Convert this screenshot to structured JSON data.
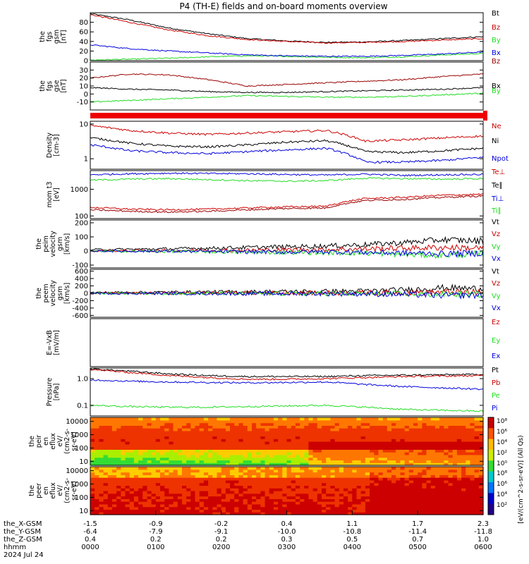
{
  "title": "P4 (TH-E) fields and on-board moments overview",
  "colors": {
    "black": "#000000",
    "red": "#cc0000",
    "green": "#22dd22",
    "blue": "#0000dd",
    "darkred": "#990000"
  },
  "chart_data": [
    {
      "id": "fgs1",
      "type": "line",
      "ylabel": [
        "the",
        "fgs",
        "gsm",
        "[nT]"
      ],
      "ylim": [
        0,
        100
      ],
      "ticks": [
        "0",
        "20",
        "40",
        "60",
        "80"
      ],
      "tickvals": [
        0,
        20,
        40,
        60,
        80
      ],
      "legend": [
        "Bt",
        "Bz",
        "By",
        "Bx"
      ],
      "legend_colors": [
        "black",
        "red",
        "green",
        "blue"
      ],
      "series": [
        {
          "name": "Bt",
          "color": "black",
          "x": [
            0,
            0.1,
            0.2,
            0.3,
            0.4,
            0.5,
            0.6,
            0.7,
            0.8,
            0.9,
            1
          ],
          "y": [
            98,
            85,
            68,
            56,
            46,
            41,
            38,
            39,
            42,
            46,
            50
          ]
        },
        {
          "name": "Bz",
          "color": "red",
          "x": [
            0,
            0.1,
            0.2,
            0.3,
            0.4,
            0.5,
            0.6,
            0.7,
            0.8,
            0.9,
            1
          ],
          "y": [
            96,
            80,
            64,
            52,
            44,
            40,
            37,
            38,
            40,
            43,
            46
          ]
        },
        {
          "name": "By",
          "color": "green",
          "x": [
            0,
            0.1,
            0.2,
            0.3,
            0.4,
            0.5,
            0.6,
            0.7,
            0.8,
            0.9,
            1
          ],
          "y": [
            1,
            3,
            5,
            8,
            10,
            9,
            7,
            6,
            8,
            12,
            15
          ]
        },
        {
          "name": "Bx",
          "color": "blue",
          "x": [
            0,
            0.1,
            0.2,
            0.3,
            0.4,
            0.5,
            0.6,
            0.7,
            0.8,
            0.9,
            1
          ],
          "y": [
            33,
            25,
            20,
            16,
            12,
            10,
            9,
            9,
            11,
            14,
            18
          ]
        }
      ]
    },
    {
      "id": "fgs2",
      "type": "line",
      "ylabel": [
        "the",
        "fgs",
        "gse",
        "[nT]"
      ],
      "ylim": [
        -20,
        40
      ],
      "ticks": [
        "-10",
        "0",
        "10",
        "20",
        "30"
      ],
      "tickvals": [
        -10,
        0,
        10,
        20,
        30
      ],
      "legend": [
        "Bz",
        "Bx",
        "By"
      ],
      "legend_colors": [
        "darkred",
        "black",
        "green"
      ],
      "series": [
        {
          "name": "Bz",
          "color": "darkred",
          "x": [
            0,
            0.1,
            0.2,
            0.3,
            0.4,
            0.5,
            0.6,
            0.7,
            0.8,
            0.9,
            1
          ],
          "y": [
            20,
            25,
            24,
            18,
            10,
            12,
            14,
            16,
            18,
            22,
            25
          ]
        },
        {
          "name": "Bx",
          "color": "black",
          "x": [
            0,
            0.1,
            0.2,
            0.3,
            0.4,
            0.5,
            0.6,
            0.7,
            0.8,
            0.9,
            1
          ],
          "y": [
            8,
            6,
            5,
            3,
            2,
            2,
            3,
            4,
            5,
            6,
            8
          ]
        },
        {
          "name": "By",
          "color": "green",
          "x": [
            0,
            0.1,
            0.2,
            0.3,
            0.4,
            0.5,
            0.6,
            0.7,
            0.8,
            0.9,
            1
          ],
          "y": [
            -10,
            -8,
            -6,
            -4,
            -2,
            -3,
            -4,
            -4,
            -3,
            -1,
            1
          ]
        }
      ]
    },
    {
      "id": "density",
      "type": "line",
      "ylabel": [
        "Density",
        "[cm-3]"
      ],
      "yscale": "log",
      "ylim": [
        0.5,
        12
      ],
      "ticks": [
        "1",
        "10"
      ],
      "tickvals": [
        1,
        10
      ],
      "legend": [
        "Ne",
        "Ni",
        "Npot"
      ],
      "legend_colors": [
        "red",
        "black",
        "blue"
      ],
      "series": [
        {
          "name": "Ne",
          "color": "red",
          "x": [
            0,
            0.1,
            0.2,
            0.3,
            0.4,
            0.5,
            0.6,
            0.7,
            0.8,
            0.9,
            1
          ],
          "y": [
            9,
            6.5,
            5.5,
            5,
            5.5,
            6,
            6.5,
            3.2,
            3.5,
            4,
            4.5
          ]
        },
        {
          "name": "Ni",
          "color": "black",
          "x": [
            0,
            0.1,
            0.2,
            0.3,
            0.4,
            0.5,
            0.6,
            0.7,
            0.8,
            0.9,
            1
          ],
          "y": [
            4,
            2.8,
            2.3,
            2.2,
            2.5,
            3,
            3.3,
            1.6,
            1.5,
            1.7,
            2
          ]
        },
        {
          "name": "Npot",
          "color": "blue",
          "x": [
            0,
            0.1,
            0.2,
            0.3,
            0.4,
            0.5,
            0.6,
            0.7,
            0.8,
            0.9,
            1
          ],
          "y": [
            2.5,
            1.7,
            1.5,
            1.4,
            1.6,
            1.8,
            2,
            0.8,
            0.8,
            0.9,
            1.1
          ]
        }
      ]
    },
    {
      "id": "temp",
      "type": "line",
      "ylabel": [
        "mom t3",
        "[eV]"
      ],
      "yscale": "log",
      "ylim": [
        80,
        5000
      ],
      "ticks": [
        "100",
        "1000"
      ],
      "tickvals": [
        100,
        1000
      ],
      "legend": [
        "Te⊥",
        "Te∥",
        "Ti⊥",
        "Ti∥"
      ],
      "legend_colors": [
        "red",
        "black",
        "blue",
        "green"
      ],
      "series": [
        {
          "name": "Ti⊥",
          "color": "blue",
          "x": [
            0,
            0.1,
            0.2,
            0.3,
            0.4,
            0.5,
            0.6,
            0.7,
            0.8,
            0.9,
            1
          ],
          "y": [
            3500,
            3800,
            4000,
            3900,
            3800,
            3600,
            3400,
            3700,
            3300,
            3500,
            3600
          ]
        },
        {
          "name": "Ti∥",
          "color": "green",
          "x": [
            0,
            0.1,
            0.2,
            0.3,
            0.4,
            0.5,
            0.6,
            0.7,
            0.8,
            0.9,
            1
          ],
          "y": [
            2200,
            2400,
            2500,
            2300,
            2100,
            2000,
            2100,
            2600,
            2500,
            2400,
            2500
          ]
        },
        {
          "name": "Te⊥",
          "color": "red",
          "x": [
            0,
            0.1,
            0.2,
            0.3,
            0.4,
            0.5,
            0.6,
            0.7,
            0.8,
            0.9,
            1
          ],
          "y": [
            210,
            180,
            170,
            180,
            200,
            220,
            230,
            450,
            500,
            600,
            650
          ]
        },
        {
          "name": "Te∥",
          "color": "darkred",
          "x": [
            0,
            0.1,
            0.2,
            0.3,
            0.4,
            0.5,
            0.6,
            0.7,
            0.8,
            0.9,
            1
          ],
          "y": [
            170,
            150,
            140,
            150,
            170,
            190,
            200,
            380,
            420,
            500,
            560
          ]
        }
      ]
    },
    {
      "id": "vel1",
      "type": "line",
      "ylabel": [
        "the",
        "peim",
        "velocity",
        "gsm",
        "[km/s]"
      ],
      "ylim": [
        -120,
        220
      ],
      "ticks": [
        "-100",
        "0",
        "100",
        "200"
      ],
      "tickvals": [
        -100,
        0,
        100,
        200
      ],
      "legend": [
        "Vt",
        "Vz",
        "Vy",
        "Vx"
      ],
      "legend_colors": [
        "black",
        "red",
        "green",
        "blue"
      ],
      "series": [
        {
          "name": "Vt",
          "color": "black",
          "x": [
            0,
            0.1,
            0.2,
            0.3,
            0.4,
            0.5,
            0.6,
            0.7,
            0.8,
            0.9,
            1
          ],
          "y": [
            10,
            12,
            15,
            20,
            25,
            30,
            35,
            45,
            60,
            80,
            70
          ]
        },
        {
          "name": "Vz",
          "color": "red",
          "x": [
            0,
            0.1,
            0.2,
            0.3,
            0.4,
            0.5,
            0.6,
            0.7,
            0.8,
            0.9,
            1
          ],
          "y": [
            0,
            2,
            3,
            5,
            5,
            8,
            10,
            15,
            20,
            25,
            20
          ]
        },
        {
          "name": "Vy",
          "color": "green",
          "x": [
            0,
            0.1,
            0.2,
            0.3,
            0.4,
            0.5,
            0.6,
            0.7,
            0.8,
            0.9,
            1
          ],
          "y": [
            0,
            -2,
            -3,
            -5,
            -8,
            -10,
            -12,
            -15,
            -25,
            -30,
            -20
          ]
        },
        {
          "name": "Vx",
          "color": "blue",
          "x": [
            0,
            0.1,
            0.2,
            0.3,
            0.4,
            0.5,
            0.6,
            0.7,
            0.8,
            0.9,
            1
          ],
          "y": [
            0,
            -1,
            -2,
            -4,
            -6,
            -8,
            -5,
            -10,
            -15,
            -20,
            -15
          ]
        }
      ]
    },
    {
      "id": "vel2",
      "type": "line",
      "ylabel": [
        "the",
        "peem",
        "velocity",
        "gsm",
        "[km/s]"
      ],
      "ylim": [
        -650,
        650
      ],
      "ticks": [
        "-600",
        "-400",
        "-200",
        "0",
        "200",
        "400",
        "600"
      ],
      "tickvals": [
        -600,
        -400,
        -200,
        0,
        200,
        400,
        600
      ],
      "legend": [
        "Vt",
        "Vz",
        "Vy",
        "Vx"
      ],
      "legend_colors": [
        "black",
        "red",
        "green",
        "blue"
      ],
      "series": [
        {
          "name": "Vt",
          "color": "black",
          "x": [
            0,
            0.1,
            0.2,
            0.3,
            0.4,
            0.5,
            0.6,
            0.7,
            0.8,
            0.9,
            1
          ],
          "y": [
            20,
            25,
            30,
            35,
            40,
            45,
            50,
            60,
            90,
            150,
            120
          ]
        },
        {
          "name": "Vz",
          "color": "red",
          "x": [
            0,
            0.1,
            0.2,
            0.3,
            0.4,
            0.5,
            0.6,
            0.7,
            0.8,
            0.9,
            1
          ],
          "y": [
            0,
            5,
            5,
            8,
            10,
            10,
            12,
            15,
            20,
            30,
            25
          ]
        },
        {
          "name": "Vy",
          "color": "green",
          "x": [
            0,
            0.1,
            0.2,
            0.3,
            0.4,
            0.5,
            0.6,
            0.7,
            0.8,
            0.9,
            1
          ],
          "y": [
            0,
            -3,
            -5,
            -5,
            -8,
            -10,
            -10,
            -12,
            -20,
            -30,
            -25
          ]
        },
        {
          "name": "Vx",
          "color": "blue",
          "x": [
            0,
            0.1,
            0.2,
            0.3,
            0.4,
            0.5,
            0.6,
            0.7,
            0.8,
            0.9,
            1
          ],
          "y": [
            0,
            -2,
            -4,
            -6,
            -8,
            -10,
            -10,
            -15,
            -30,
            -60,
            -50
          ]
        }
      ]
    },
    {
      "id": "efield",
      "type": "line",
      "ylabel": [
        "E=-VxB",
        "[mV/m]"
      ],
      "ylim": [
        0,
        1
      ],
      "ticks": [],
      "tickvals": [],
      "legend": [
        "Ez",
        "Ey",
        "Ex"
      ],
      "legend_colors": [
        "red",
        "green",
        "blue"
      ],
      "series": []
    },
    {
      "id": "pressure",
      "type": "line",
      "ylabel": [
        "Pressure",
        "[nPa]"
      ],
      "yscale": "log",
      "ylim": [
        0.04,
        2.5
      ],
      "ticks": [
        "0.1",
        "1.0"
      ],
      "tickvals": [
        0.1,
        1.0
      ],
      "legend": [
        "Pt",
        "Pb",
        "Pe",
        "Pi"
      ],
      "legend_colors": [
        "black",
        "red",
        "green",
        "blue"
      ],
      "series": [
        {
          "name": "Pt",
          "color": "black",
          "x": [
            0,
            0.1,
            0.2,
            0.3,
            0.4,
            0.5,
            0.6,
            0.7,
            0.8,
            0.9,
            1
          ],
          "y": [
            2.3,
            1.9,
            1.5,
            1.3,
            1.2,
            1.2,
            1.2,
            1.3,
            1.35,
            1.4,
            1.45
          ]
        },
        {
          "name": "Pb",
          "color": "red",
          "x": [
            0,
            0.1,
            0.2,
            0.3,
            0.4,
            0.5,
            0.6,
            0.7,
            0.8,
            0.9,
            1
          ],
          "y": [
            2.2,
            1.7,
            1.3,
            1.1,
            0.95,
            0.95,
            1.0,
            1.1,
            1.2,
            1.25,
            1.3
          ]
        },
        {
          "name": "Pi",
          "color": "blue",
          "x": [
            0,
            0.1,
            0.2,
            0.3,
            0.4,
            0.5,
            0.6,
            0.7,
            0.8,
            0.9,
            1
          ],
          "y": [
            0.9,
            0.8,
            0.75,
            0.72,
            0.7,
            0.72,
            0.75,
            0.6,
            0.5,
            0.45,
            0.4
          ]
        },
        {
          "name": "Pe",
          "color": "green",
          "x": [
            0,
            0.1,
            0.2,
            0.3,
            0.4,
            0.5,
            0.6,
            0.7,
            0.8,
            0.9,
            1
          ],
          "y": [
            0.1,
            0.09,
            0.085,
            0.085,
            0.09,
            0.095,
            0.1,
            0.085,
            0.07,
            0.065,
            0.06
          ]
        }
      ]
    },
    {
      "id": "ion_spec",
      "type": "heatmap",
      "ylabel": [
        "the",
        "peir",
        "en",
        "eflux",
        "eV/",
        "(cm2-s-",
        "sr-eV)"
      ],
      "yscale": "log",
      "ylim": [
        5,
        20000
      ],
      "ticks": [
        "10",
        "100",
        "1000",
        "10000"
      ],
      "tickvals": [
        10,
        100,
        1000,
        10000
      ]
    },
    {
      "id": "elec_spec",
      "type": "heatmap",
      "ylabel": [
        "the",
        "peer",
        "en",
        "eflux",
        "eV/",
        "(cm2-s-",
        "sr-eV)"
      ],
      "yscale": "log",
      "ylim": [
        5,
        20000
      ],
      "ticks": [
        "10",
        "100",
        "1000",
        "10000"
      ],
      "tickvals": [
        10,
        100,
        1000,
        10000
      ]
    }
  ],
  "colorbar": {
    "label": "[eV/(cm^2-s-sr-eV)] (All Qs)",
    "ticks": [
      "10⁸",
      "10⁶",
      "10⁴",
      "10²",
      "10⁰"
    ],
    "ticks2": [
      "10⁸",
      "10⁶",
      "10⁴",
      "10²"
    ]
  },
  "xaxis": {
    "row_labels": [
      "the_X-GSM",
      "the_Y-GSM",
      "the_Z-GSM",
      "hhmm",
      "2024 Jul 24"
    ],
    "x_gsm": [
      "-1.5",
      "-0.9",
      "-0.2",
      "0.4",
      "1.1",
      "1.7",
      "2.3"
    ],
    "y_gsm": [
      "-6.4",
      "-7.9",
      "-9.1",
      "-10.0",
      "-10.8",
      "-11.4",
      "-11.8"
    ],
    "z_gsm": [
      "0.4",
      "0.2",
      "0.2",
      "0.3",
      "0.5",
      "0.7",
      "1.0"
    ],
    "hhmm": [
      "0000",
      "0100",
      "0200",
      "0300",
      "0400",
      "0500",
      "0600"
    ]
  }
}
